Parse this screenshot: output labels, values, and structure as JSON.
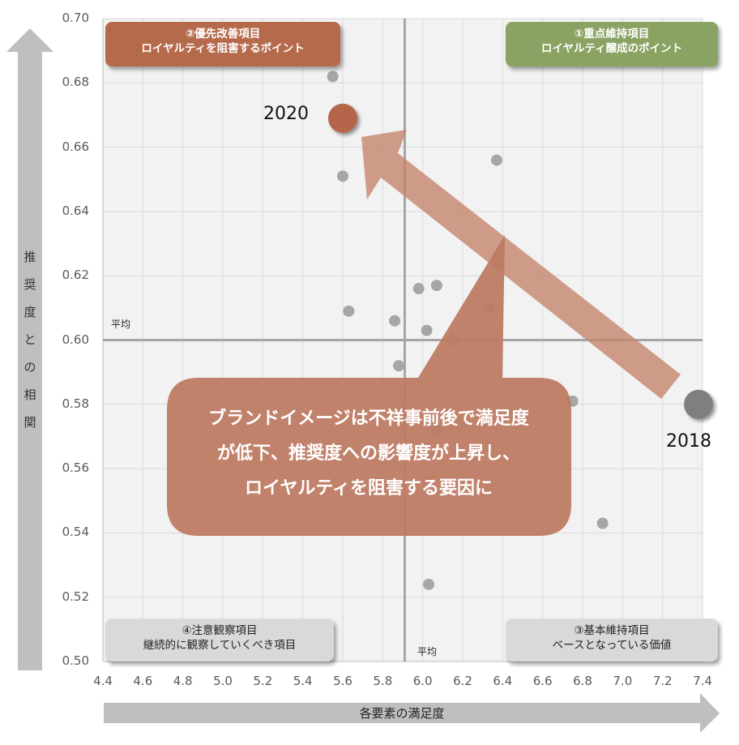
{
  "chart_data": {
    "type": "scatter",
    "title": "",
    "xlabel": "各要素の満足度",
    "ylabel": "推奨度との相関",
    "xlim": [
      4.4,
      7.4
    ],
    "ylim": [
      0.5,
      0.7
    ],
    "x_ticks": [
      "4.4",
      "4.6",
      "4.8",
      "5.0",
      "5.2",
      "5.4",
      "5.6",
      "5.8",
      "6.0",
      "6.2",
      "6.4",
      "6.6",
      "6.8",
      "7.0",
      "7.2",
      "7.4"
    ],
    "y_ticks": [
      "0.50",
      "0.52",
      "0.54",
      "0.56",
      "0.58",
      "0.60",
      "0.62",
      "0.64",
      "0.66",
      "0.68",
      "0.70"
    ],
    "grid": true,
    "average_lines": {
      "x": 5.91,
      "y": 0.6,
      "label": "平均"
    },
    "series": [
      {
        "name": "items",
        "color": "#a6a6a6",
        "points": [
          {
            "x": 5.55,
            "y": 0.682
          },
          {
            "x": 5.6,
            "y": 0.651
          },
          {
            "x": 6.37,
            "y": 0.656
          },
          {
            "x": 5.98,
            "y": 0.616
          },
          {
            "x": 6.07,
            "y": 0.617
          },
          {
            "x": 5.63,
            "y": 0.609
          },
          {
            "x": 5.86,
            "y": 0.606
          },
          {
            "x": 6.02,
            "y": 0.603
          },
          {
            "x": 6.33,
            "y": 0.61
          },
          {
            "x": 6.15,
            "y": 0.6
          },
          {
            "x": 5.88,
            "y": 0.592
          },
          {
            "x": 6.75,
            "y": 0.581
          },
          {
            "x": 6.07,
            "y": 0.572
          },
          {
            "x": 6.03,
            "y": 0.556
          },
          {
            "x": 6.9,
            "y": 0.543
          },
          {
            "x": 6.03,
            "y": 0.524
          }
        ]
      },
      {
        "name": "brand-image",
        "points": [
          {
            "label": "2018",
            "x": 7.38,
            "y": 0.58,
            "color": "#7f7f7f"
          },
          {
            "label": "2020",
            "x": 5.6,
            "y": 0.669,
            "color": "#b5654a"
          }
        ]
      }
    ],
    "quadrants": [
      {
        "id": "q1",
        "line1": "①重点維持項目",
        "line2": "ロイヤルティ醸成のポイント",
        "color": "#8aa262"
      },
      {
        "id": "q2",
        "line1": "②優先改善項目",
        "line2": "ロイヤルティを阻害するポイント",
        "color": "#b66a4c"
      },
      {
        "id": "q3",
        "line1": "③基本維持項目",
        "line2": "ベースとなっている価値",
        "color": "#d9d9d9"
      },
      {
        "id": "q4",
        "line1": "④注意観察項目",
        "line2": "継続的に観察していくべき項目",
        "color": "#d9d9d9"
      }
    ],
    "annotations": [
      {
        "type": "arrow",
        "from": "2018",
        "to": "2020"
      },
      {
        "type": "callout",
        "lines": [
          "ブランドイメージは不祥事前後で満足度",
          "が低下、推奨度への影響度が上昇し、",
          "ロイヤルティを阻害する要因に"
        ]
      }
    ]
  },
  "axes": {
    "x_title": "各要素の満足度",
    "y_title_chars": [
      "推",
      "奨",
      "度",
      "と",
      "の",
      "相",
      "関"
    ],
    "avg_label_h": "平均",
    "avg_label_v": "平均"
  },
  "colors": {
    "plot_bg": "#f2f2f2",
    "grid": "#d9d9d9",
    "avg_line": "#a6a6a6",
    "axis_arrow": "#bfbfbf",
    "point": "#a6a6a6",
    "arrow": "#c98a72",
    "callout": "#bd7a62"
  }
}
